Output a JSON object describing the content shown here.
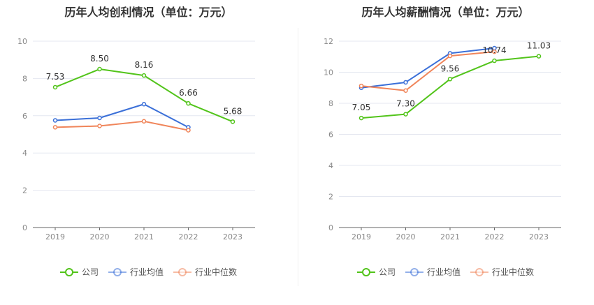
{
  "colors": {
    "company": "#52c41a",
    "industry_avg": "#3a6fd8",
    "industry_median": "#f0855a",
    "grid": "#e4e7f0",
    "axis": "#888888",
    "label": "#333333"
  },
  "chart_data": [
    {
      "type": "line",
      "title": "历年人均创利情况（单位：万元）",
      "categories": [
        "2019",
        "2020",
        "2021",
        "2022",
        "2023"
      ],
      "ylim": [
        0,
        10
      ],
      "yticks": [
        "0",
        "2",
        "4",
        "6",
        "8",
        "10"
      ],
      "series": [
        {
          "name": "公司",
          "color_key": "company",
          "values": [
            7.53,
            8.5,
            8.16,
            6.66,
            5.68
          ],
          "labels": [
            "7.53",
            "8.50",
            "8.16",
            "6.66",
            "5.68"
          ]
        },
        {
          "name": "行业均值",
          "color_key": "industry_avg",
          "values": [
            5.75,
            5.88,
            6.62,
            5.38,
            null
          ]
        },
        {
          "name": "行业中位数",
          "color_key": "industry_median",
          "values": [
            5.38,
            5.45,
            5.7,
            5.22,
            null
          ]
        }
      ],
      "legend": [
        "公司",
        "行业均值",
        "行业中位数"
      ]
    },
    {
      "type": "line",
      "title": "历年人均薪酬情况（单位：万元）",
      "categories": [
        "2019",
        "2020",
        "2021",
        "2022",
        "2023"
      ],
      "ylim": [
        0,
        12
      ],
      "yticks": [
        "0",
        "2",
        "4",
        "6",
        "8",
        "10",
        "12"
      ],
      "series": [
        {
          "name": "公司",
          "color_key": "company",
          "values": [
            7.05,
            7.3,
            9.56,
            10.74,
            11.03
          ],
          "labels": [
            "7.05",
            "7.30",
            "9.56",
            "10.74",
            "11.03"
          ]
        },
        {
          "name": "行业均值",
          "color_key": "industry_avg",
          "values": [
            9.0,
            9.35,
            11.22,
            11.55,
            null
          ]
        },
        {
          "name": "行业中位数",
          "color_key": "industry_median",
          "values": [
            9.12,
            8.82,
            11.05,
            11.32,
            null
          ]
        }
      ],
      "legend": [
        "公司",
        "行业均值",
        "行业中位数"
      ]
    }
  ]
}
